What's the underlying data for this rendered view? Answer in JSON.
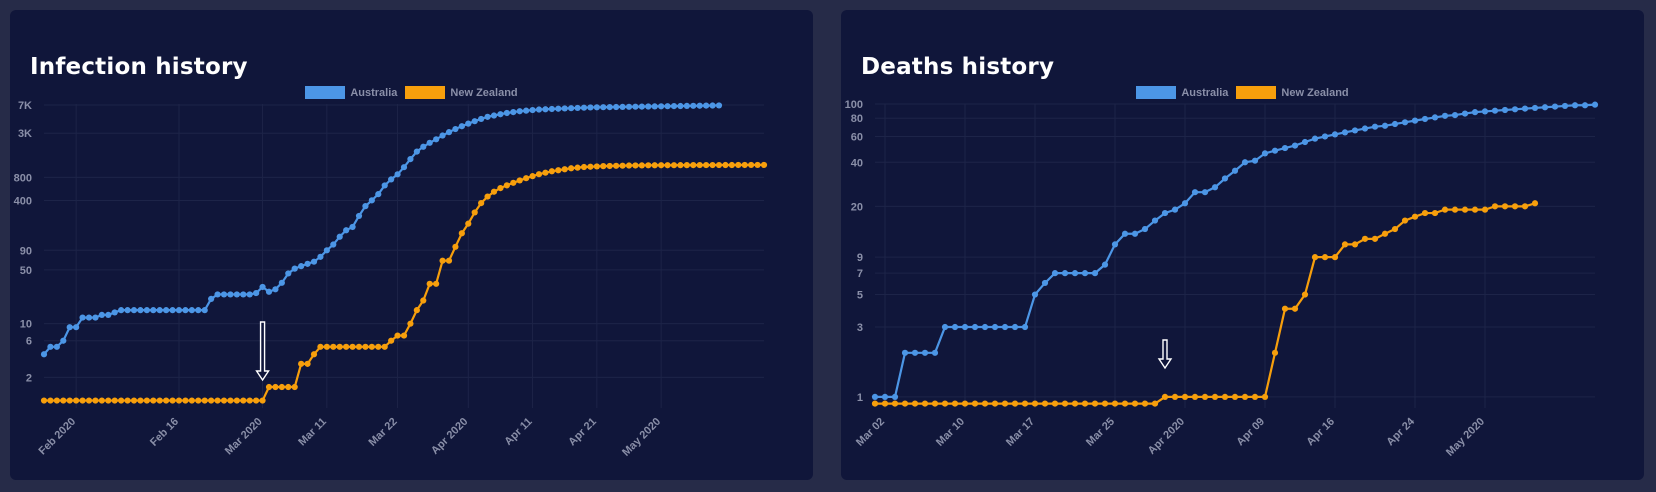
{
  "colors": {
    "page_bg": "#262b48",
    "panel_bg": "#10163a",
    "australia": "#4c96e6",
    "new_zealand": "#f79f0c",
    "tick": "#8a8fa8",
    "grid": "#1d2448"
  },
  "chart_data": [
    {
      "type": "line",
      "title": "Infection history",
      "yscale": "log",
      "ylim": [
        0.8,
        7200
      ],
      "y_ticks": [
        {
          "label": "7K",
          "value": 7000
        },
        {
          "label": "3K",
          "value": 3000
        },
        {
          "label": "800",
          "value": 800
        },
        {
          "label": "400",
          "value": 400
        },
        {
          "label": "90",
          "value": 90
        },
        {
          "label": "50",
          "value": 50
        },
        {
          "label": "10",
          "value": 10
        },
        {
          "label": "6",
          "value": 6
        },
        {
          "label": "2",
          "value": 2
        }
      ],
      "x_ticks": [
        {
          "label": "Feb 2020",
          "index": 5
        },
        {
          "label": "Feb 16",
          "index": 21
        },
        {
          "label": "Mar 2020",
          "index": 34
        },
        {
          "label": "Mar 11",
          "index": 44
        },
        {
          "label": "Mar 22",
          "index": 55
        },
        {
          "label": "Apr 2020",
          "index": 66
        },
        {
          "label": "Apr 11",
          "index": 76
        },
        {
          "label": "Apr 21",
          "index": 86
        },
        {
          "label": "May 2020",
          "index": 96
        }
      ],
      "annotation": {
        "type": "arrow",
        "index": 34
      },
      "series": [
        {
          "name": "Australia",
          "values": [
            4,
            5,
            5,
            6,
            9,
            9,
            12,
            12,
            12,
            13,
            13,
            14,
            15,
            15,
            15,
            15,
            15,
            15,
            15,
            15,
            15,
            15,
            15,
            15,
            15,
            15,
            21,
            24,
            24,
            24,
            24,
            24,
            24,
            25,
            30,
            26,
            28,
            34,
            45,
            52,
            56,
            60,
            64,
            74,
            90,
            107,
            135,
            164,
            181,
            252,
            338,
            402,
            484,
            628,
            753,
            876,
            1085,
            1382,
            1731,
            2000,
            2252,
            2500,
            2800,
            3100,
            3400,
            3700,
            4000,
            4300,
            4600,
            4900,
            5100,
            5300,
            5500,
            5650,
            5800,
            5900,
            6000,
            6100,
            6150,
            6200,
            6250,
            6300,
            6350,
            6400,
            6450,
            6500,
            6520,
            6540,
            6560,
            6580,
            6600,
            6620,
            6640,
            6660,
            6680,
            6700,
            6720,
            6740,
            6760,
            6780,
            6800,
            6820,
            6840,
            6860,
            6880,
            6900
          ]
        },
        {
          "name": "New Zealand",
          "values": [
            1,
            1,
            1,
            1,
            1,
            1,
            1,
            1,
            1,
            1,
            1,
            1,
            1,
            1,
            1,
            1,
            1,
            1,
            1,
            1,
            1,
            1,
            1,
            1,
            1,
            1,
            1,
            1,
            1,
            1,
            1,
            1,
            1,
            1,
            1,
            1.5,
            1.5,
            1.5,
            1.5,
            1.5,
            3,
            3,
            4,
            5,
            5,
            5,
            5,
            5,
            5,
            5,
            5,
            5,
            5,
            5,
            6,
            7,
            7,
            10,
            15,
            20,
            33,
            33,
            66,
            66,
            100,
            150,
            200,
            280,
            370,
            450,
            520,
            580,
            630,
            680,
            730,
            780,
            830,
            880,
            920,
            960,
            990,
            1020,
            1050,
            1070,
            1090,
            1100,
            1110,
            1120,
            1125,
            1130,
            1135,
            1140,
            1142,
            1145,
            1147,
            1149,
            1150,
            1151,
            1152,
            1153,
            1154,
            1155,
            1156,
            1156,
            1157,
            1157,
            1158,
            1158,
            1159,
            1159,
            1160,
            1160,
            1160
          ]
        }
      ]
    },
    {
      "type": "line",
      "title": "Deaths history",
      "yscale": "log",
      "ylim": [
        0.84,
        100
      ],
      "y_ticks": [
        {
          "label": "100",
          "value": 100
        },
        {
          "label": "80",
          "value": 80
        },
        {
          "label": "60",
          "value": 60
        },
        {
          "label": "40",
          "value": 40
        },
        {
          "label": "20",
          "value": 20
        },
        {
          "label": "9",
          "value": 9
        },
        {
          "label": "7",
          "value": 7
        },
        {
          "label": "5",
          "value": 5
        },
        {
          "label": "3",
          "value": 3
        },
        {
          "label": "1",
          "value": 1
        }
      ],
      "x_ticks": [
        {
          "label": "Mar 02",
          "index": 1
        },
        {
          "label": "Mar 10",
          "index": 9
        },
        {
          "label": "Mar 17",
          "index": 16
        },
        {
          "label": "Mar 25",
          "index": 24
        },
        {
          "label": "Apr 2020",
          "index": 31
        },
        {
          "label": "Apr 09",
          "index": 39
        },
        {
          "label": "Apr 16",
          "index": 46
        },
        {
          "label": "Apr 24",
          "index": 54
        },
        {
          "label": "May 2020",
          "index": 61
        }
      ],
      "annotation": {
        "type": "arrow",
        "index": 29
      },
      "series": [
        {
          "name": "Australia",
          "values": [
            1,
            1,
            1,
            2,
            2,
            2,
            2,
            3,
            3,
            3,
            3,
            3,
            3,
            3,
            3,
            3,
            5,
            6,
            7,
            7,
            7,
            7,
            7,
            8,
            11,
            13,
            13,
            14,
            16,
            18,
            19,
            21,
            25,
            25,
            27,
            31,
            35,
            40,
            41,
            46,
            48,
            50,
            52,
            55,
            58,
            60,
            62,
            64,
            66,
            68,
            70,
            71,
            73,
            75,
            77,
            79,
            81,
            83,
            84,
            86,
            88,
            89,
            90,
            91,
            92,
            93,
            94,
            95,
            96,
            97,
            98,
            98,
            99
          ]
        },
        {
          "name": "New Zealand",
          "values": [
            0.9,
            0.9,
            0.9,
            0.9,
            0.9,
            0.9,
            0.9,
            0.9,
            0.9,
            0.9,
            0.9,
            0.9,
            0.9,
            0.9,
            0.9,
            0.9,
            0.9,
            0.9,
            0.9,
            0.9,
            0.9,
            0.9,
            0.9,
            0.9,
            0.9,
            0.9,
            0.9,
            0.9,
            0.9,
            1,
            1,
            1,
            1,
            1,
            1,
            1,
            1,
            1,
            1,
            1,
            2,
            4,
            4,
            5,
            9,
            9,
            9,
            11,
            11,
            12,
            12,
            13,
            14,
            16,
            17,
            18,
            18,
            19,
            19,
            19,
            19,
            19,
            20,
            20,
            20,
            20,
            21
          ]
        }
      ]
    }
  ]
}
